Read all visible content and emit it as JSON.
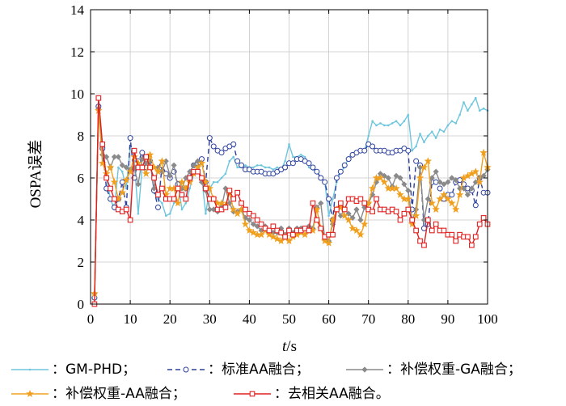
{
  "chart_data": {
    "type": "line",
    "xlabel": {
      "italic": "t",
      "unit": "/s"
    },
    "ylabel": "OSPA误差",
    "xlim": [
      0,
      100
    ],
    "ylim": [
      0,
      14
    ],
    "xticks": [
      "0",
      "10",
      "20",
      "30",
      "40",
      "50",
      "60",
      "70",
      "80",
      "90",
      "100"
    ],
    "yticks": [
      "0",
      "2",
      "4",
      "6",
      "8",
      "10",
      "12",
      "14"
    ],
    "grid": true,
    "legend_position": "bottom",
    "x": [
      1,
      2,
      3,
      4,
      5,
      6,
      7,
      8,
      9,
      10,
      11,
      12,
      13,
      14,
      15,
      16,
      17,
      18,
      19,
      20,
      21,
      22,
      23,
      24,
      25,
      26,
      27,
      28,
      29,
      30,
      31,
      32,
      33,
      34,
      35,
      36,
      37,
      38,
      39,
      40,
      41,
      42,
      43,
      44,
      45,
      46,
      47,
      48,
      49,
      50,
      51,
      52,
      53,
      54,
      55,
      56,
      57,
      58,
      59,
      60,
      61,
      62,
      63,
      64,
      65,
      66,
      67,
      68,
      69,
      70,
      71,
      72,
      73,
      74,
      75,
      76,
      77,
      78,
      79,
      80,
      81,
      82,
      83,
      84,
      85,
      86,
      87,
      88,
      89,
      90,
      91,
      92,
      93,
      94,
      95,
      96,
      97,
      98,
      99,
      100
    ],
    "series": [
      {
        "name": "GM-PHD",
        "color": "#6ec6de",
        "dash": "",
        "marker": "dot",
        "values": [
          0.3,
          9.2,
          7.0,
          6.0,
          5.0,
          4.5,
          6.5,
          6.3,
          5.5,
          7.5,
          6.8,
          4.3,
          6.5,
          6.2,
          6.8,
          5.3,
          5.0,
          4.8,
          4.2,
          4.3,
          4.8,
          5.8,
          4.5,
          4.8,
          5.5,
          6.2,
          6.5,
          6.0,
          4.3,
          5.5,
          5.8,
          5.8,
          6.0,
          6.2,
          6.8,
          7.0,
          6.5,
          6.5,
          6.6,
          6.5,
          6.5,
          6.6,
          6.6,
          6.5,
          6.5,
          6.4,
          6.5,
          6.4,
          6.8,
          7.6,
          7.0,
          7.0,
          7.1,
          7.0,
          6.5,
          6.4,
          6.3,
          6.0,
          5.8,
          4.2,
          5.0,
          5.8,
          6.3,
          6.5,
          7.0,
          7.1,
          7.2,
          7.3,
          7.3,
          8.0,
          8.7,
          8.5,
          8.6,
          8.5,
          8.5,
          8.6,
          8.7,
          8.5,
          8.7,
          9.0,
          7.3,
          7.5,
          8.1,
          7.7,
          8.0,
          8.2,
          7.9,
          8.3,
          8.2,
          8.5,
          8.7,
          8.6,
          9.0,
          9.6,
          9.2,
          9.5,
          9.8,
          9.2,
          9.3,
          9.2
        ]
      },
      {
        "name": "标准AA融合",
        "color": "#2b3f9c",
        "dash": "6 4",
        "marker": "circle",
        "values": [
          0.3,
          9.4,
          7.4,
          5.5,
          5.0,
          4.6,
          5.0,
          5.8,
          4.6,
          7.9,
          6.0,
          6.8,
          7.2,
          6.5,
          6.8,
          5.4,
          4.6,
          6.6,
          6.2,
          6.0,
          6.3,
          5.7,
          5.2,
          5.5,
          6.0,
          6.6,
          6.7,
          6.9,
          5.8,
          7.9,
          7.5,
          7.3,
          7.2,
          7.4,
          7.5,
          7.6,
          6.8,
          6.6,
          6.4,
          6.4,
          6.3,
          6.3,
          6.3,
          6.2,
          6.2,
          6.2,
          6.3,
          6.4,
          6.5,
          6.7,
          6.7,
          6.9,
          6.9,
          6.8,
          6.7,
          6.5,
          6.3,
          6.0,
          5.8,
          5.0,
          4.0,
          6.0,
          6.3,
          6.6,
          6.9,
          7.1,
          7.2,
          7.3,
          7.3,
          7.6,
          7.5,
          7.3,
          7.3,
          7.3,
          7.2,
          7.2,
          7.3,
          7.3,
          7.4,
          7.3,
          4.5,
          6.8,
          6.6,
          3.6,
          3.8,
          5.8,
          5.8,
          5.5,
          5.0,
          5.2,
          5.2,
          5.8,
          5.9,
          5.7,
          5.5,
          5.4,
          4.7,
          6.0,
          5.3,
          5.3
        ]
      },
      {
        "name": "补偿权重-GA融合",
        "color": "#8a8a8a",
        "dash": "",
        "marker": "diamond",
        "values": [
          0.5,
          9.3,
          7.1,
          7.0,
          6.5,
          7.0,
          7.0,
          6.6,
          6.5,
          6.4,
          6.5,
          5.7,
          6.9,
          6.7,
          6.8,
          5.5,
          6.5,
          6.3,
          6.8,
          6.1,
          6.6,
          5.5,
          5.5,
          6.0,
          6.3,
          6.6,
          6.8,
          5.8,
          5.4,
          4.5,
          4.5,
          4.4,
          4.6,
          5.5,
          4.8,
          4.4,
          4.4,
          4.5,
          4.1,
          4.0,
          3.8,
          3.7,
          3.5,
          3.7,
          3.5,
          3.4,
          3.4,
          3.6,
          3.3,
          3.6,
          3.4,
          3.6,
          3.6,
          3.6,
          3.7,
          3.6,
          4.6,
          4.8,
          3.1,
          3.0,
          3.8,
          4.5,
          4.2,
          4.5,
          4.3,
          4.1,
          4.5,
          4.0,
          4.6,
          4.8,
          5.2,
          5.8,
          6.2,
          6.1,
          6.0,
          5.6,
          6.1,
          6.0,
          5.7,
          5.4,
          4.0,
          4.5,
          6.5,
          4.0,
          5.0,
          6.0,
          6.3,
          5.8,
          5.7,
          5.8,
          6.0,
          5.9,
          5.5,
          5.5,
          5.2,
          5.5,
          5.8,
          6.0,
          6.1,
          6.4
        ]
      },
      {
        "name": "补偿权重-AA融合",
        "color": "#f0a01e",
        "dash": "",
        "marker": "star",
        "values": [
          0.5,
          9.2,
          6.7,
          6.2,
          6.5,
          5.8,
          5.0,
          5.3,
          5.9,
          6.3,
          7.0,
          6.7,
          6.5,
          6.2,
          7.1,
          6.5,
          6.3,
          6.8,
          5.2,
          5.5,
          5.5,
          4.8,
          5.8,
          5.5,
          5.8,
          6.2,
          6.5,
          6.7,
          5.8,
          5.5,
          5.0,
          4.8,
          4.8,
          4.7,
          5.3,
          4.5,
          4.3,
          4.5,
          3.8,
          3.5,
          3.4,
          3.3,
          3.3,
          3.5,
          3.3,
          3.2,
          3.1,
          3.0,
          3.2,
          3.0,
          3.2,
          3.3,
          3.4,
          3.3,
          3.5,
          3.5,
          4.5,
          3.6,
          3.0,
          2.9,
          4.0,
          4.5,
          4.6,
          4.2,
          4.0,
          3.6,
          3.5,
          3.3,
          3.8,
          4.8,
          5.5,
          6.0,
          6.0,
          5.8,
          5.5,
          5.5,
          5.5,
          5.2,
          5.0,
          5.0,
          3.8,
          4.2,
          6.0,
          6.5,
          6.8,
          4.8,
          4.5,
          5.0,
          5.2,
          5.0,
          4.8,
          4.5,
          5.2,
          6.0,
          6.1,
          6.2,
          6.3,
          5.8,
          7.2,
          6.5
        ]
      },
      {
        "name": "去相关AA融合",
        "color": "#e02020",
        "dash": "",
        "marker": "square",
        "values": [
          0.0,
          9.8,
          7.6,
          6.0,
          5.5,
          5.0,
          4.5,
          4.4,
          4.5,
          4.0,
          7.3,
          6.5,
          6.5,
          7.0,
          6.5,
          6.0,
          5.2,
          5.5,
          5.0,
          5.0,
          5.0,
          5.5,
          5.2,
          5.0,
          6.0,
          6.3,
          6.3,
          6.0,
          5.5,
          5.0,
          5.0,
          4.5,
          4.5,
          4.6,
          5.4,
          5.0,
          5.3,
          4.8,
          4.5,
          4.3,
          4.2,
          4.0,
          3.8,
          3.6,
          3.5,
          3.7,
          3.5,
          3.4,
          3.2,
          3.5,
          3.3,
          3.5,
          3.5,
          3.6,
          3.5,
          4.8,
          4.0,
          3.6,
          3.2,
          3.3,
          3.3,
          4.5,
          4.8,
          4.5,
          5.0,
          5.0,
          4.9,
          5.0,
          4.8,
          4.5,
          4.4,
          5.0,
          4.5,
          4.5,
          4.4,
          4.5,
          4.4,
          4.0,
          4.3,
          4.5,
          4.0,
          3.5,
          3.0,
          2.8,
          4.0,
          3.5,
          3.8,
          3.5,
          3.5,
          3.3,
          3.3,
          3.0,
          3.3,
          3.2,
          3.2,
          2.8,
          3.2,
          3.8,
          4.1,
          3.8
        ]
      }
    ]
  },
  "legend": {
    "items": [
      {
        "label": "：GM-PHD；"
      },
      {
        "label": "：标准AA融合；"
      },
      {
        "label": "：补偿权重-GA融合；"
      },
      {
        "label": "：补偿权重-AA融合；"
      },
      {
        "label": "：去相关AA融合。"
      }
    ]
  }
}
